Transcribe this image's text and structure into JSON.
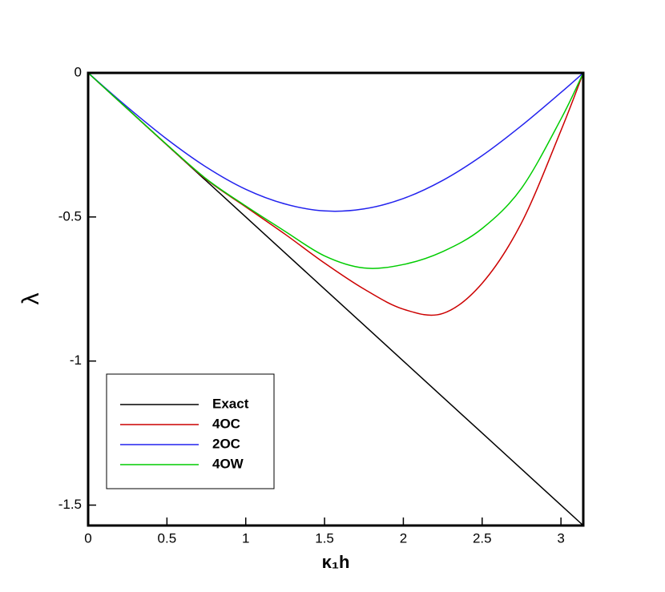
{
  "chart_data": {
    "type": "line",
    "x_label": "κ₁h",
    "y_label": "λ",
    "x": [
      0,
      0.25,
      0.5,
      0.75,
      1,
      1.25,
      1.5,
      1.75,
      2,
      2.25,
      2.5,
      2.75,
      3,
      3.1416
    ],
    "series": [
      {
        "name": "Exact",
        "color": "#000000",
        "values": [
          0,
          -0.125,
          -0.25,
          -0.375,
          -0.5,
          -0.625,
          -0.75,
          -0.875,
          -1,
          -1.125,
          -1.25,
          -1.375,
          -1.5,
          -1.5708
        ]
      },
      {
        "name": "4OC",
        "color": "#cc0000",
        "values": [
          0,
          -0.125,
          -0.25,
          -0.37,
          -0.465,
          -0.56,
          -0.66,
          -0.75,
          -0.82,
          -0.835,
          -0.73,
          -0.52,
          -0.2,
          0
        ]
      },
      {
        "name": "2OC",
        "color": "#2222ee",
        "values": [
          0,
          -0.119,
          -0.23,
          -0.327,
          -0.404,
          -0.455,
          -0.479,
          -0.472,
          -0.436,
          -0.373,
          -0.287,
          -0.183,
          -0.068,
          0
        ]
      },
      {
        "name": "4OW",
        "color": "#00cc00",
        "values": [
          0,
          -0.125,
          -0.249,
          -0.368,
          -0.462,
          -0.55,
          -0.635,
          -0.677,
          -0.665,
          -0.62,
          -0.54,
          -0.4,
          -0.16,
          0
        ]
      }
    ],
    "xlim": [
      0,
      3.1416
    ],
    "ylim": [
      -1.5708,
      0
    ],
    "xticks": [
      0,
      0.5,
      1,
      1.5,
      2,
      2.5,
      3
    ],
    "yticks": [
      0,
      -0.5,
      -1,
      -1.5
    ],
    "legend": "lower left"
  }
}
